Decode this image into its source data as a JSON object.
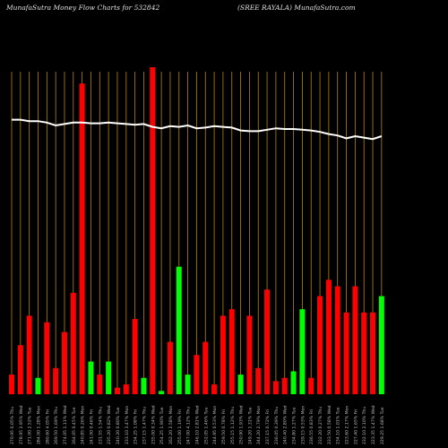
{
  "header": {
    "left": "MunafaSutra  Money Flow  Charts for 532842",
    "right": "(SREE RAYALA) MunafaSutra.com"
  },
  "colors": {
    "background": "#000000",
    "up": "#00ff00",
    "down": "#ff0000",
    "grid": "#b8860b",
    "line": "#ffffff",
    "label": "#bbbbbb"
  },
  "chart_data": {
    "type": "bar",
    "categories": [
      "270.95 0.05% Thu",
      "278.95 2.95% Wed",
      "271.00 2.52% Tue",
      "284.00 1.28% Mon",
      "280.60 4.05% Fri",
      "269.50 1.69% Thu",
      "274.05 1.11% Wed",
      "264.05 0.45% Tue",
      "240.85 0.26% Mon",
      "241.00 0.46% Fri",
      "231.55 1.54% Thu",
      "235.20 0.82% Wed",
      "240.20 0.80% Tue",
      "233.10 3.47% Mon",
      "234.25 1.08% Fri",
      "237.15 1.47% Thu",
      "235.00 0.34% Wed",
      "254.25 1.90% Tue",
      "262.20 2.58% Mon",
      "255.00 1.19% Fri",
      "247.00 4.12% Thu",
      "246.10 2.81% Wed",
      "252.05 1.46% Tue",
      "244.95 0.53% Mon",
      "259.50 0.78% Fri",
      "255.15 1.12% Thu",
      "250.90 1.93% Wed",
      "249.20 1.31% Tue",
      "244.20 2.79% Mon",
      "237.15 0.72% Fri",
      "236.05 0.39% Thu",
      "240.40 2.80% Wed",
      "234.80 1.27% Tue",
      "239.15 0.53% Mon",
      "236.55 0.83% Fri",
      "232.20 0.27% Thu",
      "233.50 0.58% Wed",
      "234.10 1.01% Tue",
      "223.60 2.17% Mon",
      "227.40 1.65% Fri",
      "232.10 2.10% Thu",
      "223.35 1.47% Wed",
      "229.25 1.68% Tue"
    ],
    "bar_colors": [
      "down",
      "down",
      "down",
      "up",
      "down",
      "down",
      "down",
      "down",
      "down",
      "up",
      "down",
      "up",
      "down",
      "down",
      "down",
      "up",
      "down",
      "up",
      "down",
      "up",
      "up",
      "down",
      "down",
      "down",
      "down",
      "down",
      "up",
      "down",
      "down",
      "down",
      "down",
      "down",
      "up",
      "up",
      "down",
      "down",
      "down",
      "down",
      "down",
      "down",
      "down",
      "down",
      "up"
    ],
    "values": [
      6,
      15,
      24,
      5,
      22,
      8,
      19,
      31,
      95,
      10,
      6,
      10,
      2,
      3,
      23,
      5,
      100,
      1,
      16,
      39,
      6,
      12,
      16,
      3,
      24,
      26,
      6,
      24,
      8,
      32,
      4,
      5,
      7,
      26,
      5,
      30,
      35,
      33,
      25,
      33,
      25,
      25,
      30
    ],
    "line": [
      83,
      83,
      81,
      81,
      79,
      75,
      77,
      79,
      79,
      78,
      78,
      79,
      78,
      77,
      76,
      77,
      73,
      71,
      74,
      73,
      75,
      71,
      72,
      74,
      73,
      72,
      68,
      67,
      67,
      69,
      71,
      70,
      70,
      69,
      68,
      66,
      63,
      61,
      57,
      60,
      58,
      56,
      60
    ]
  }
}
